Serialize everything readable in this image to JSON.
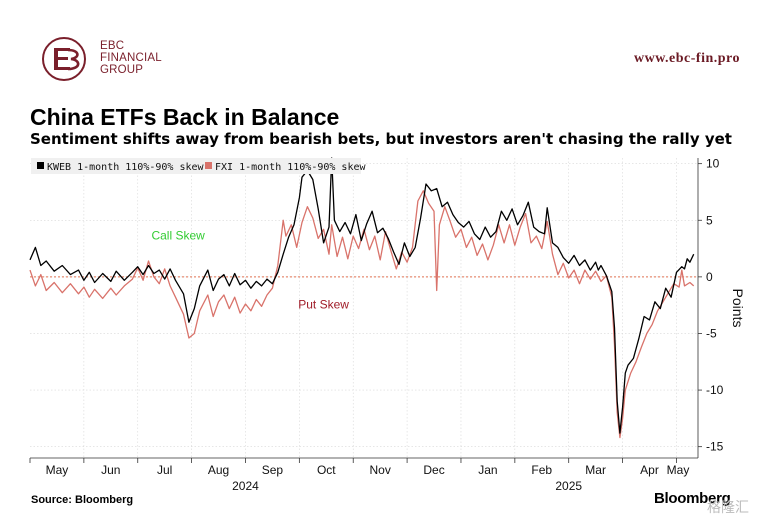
{
  "brand": {
    "logo_lines": [
      "EBC",
      "FINANCIAL",
      "GROUP"
    ],
    "website": "www.ebc-fin.pro",
    "color": "#7a1f2b"
  },
  "footer": {
    "source": "Source: Bloomberg",
    "publisher": "Bloomberg",
    "watermark": "格隆汇"
  },
  "chart_data": {
    "type": "line",
    "title": "China ETFs Back in Balance",
    "subtitle": "Sentiment shifts away from bearish bets, but investors aren't chasing the rally yet",
    "ylabel": "Points",
    "ylim": [
      -16,
      10.5
    ],
    "xlim": [
      0,
      12.4
    ],
    "yticks": [
      10,
      5,
      0,
      -5,
      -10,
      -15
    ],
    "x_ticks": [
      {
        "label": "May",
        "pos": 0.5
      },
      {
        "label": "Jun",
        "pos": 1.5
      },
      {
        "label": "Jul",
        "pos": 2.5
      },
      {
        "label": "Aug",
        "pos": 3.5
      },
      {
        "label": "Sep",
        "pos": 4.5
      },
      {
        "label": "Oct",
        "pos": 5.5
      },
      {
        "label": "Nov",
        "pos": 6.5
      },
      {
        "label": "Dec",
        "pos": 7.5
      },
      {
        "label": "Jan",
        "pos": 8.5
      },
      {
        "label": "Feb",
        "pos": 9.5
      },
      {
        "label": "Mar",
        "pos": 10.5
      },
      {
        "label": "Apr",
        "pos": 11.5
      },
      {
        "label": "May",
        "pos": 12.5
      }
    ],
    "year_labels": [
      {
        "label": "2024",
        "pos": 4.0
      },
      {
        "label": "2025",
        "pos": 10.0
      }
    ],
    "annotations": [
      {
        "text": "Call Skew",
        "x": 2.75,
        "y": 3.3,
        "color": "#33cc33"
      },
      {
        "text": "Put Skew",
        "x": 5.45,
        "y": -2.8,
        "color": "#a01c28"
      }
    ],
    "reference_line": {
      "y": 0,
      "color": "#e07050"
    },
    "series": [
      {
        "name": "KWEB 1-month 110%-90% skew",
        "color": "#000000",
        "points": [
          [
            0,
            1.5
          ],
          [
            0.1,
            2.6
          ],
          [
            0.2,
            1.0
          ],
          [
            0.3,
            1.4
          ],
          [
            0.45,
            0.5
          ],
          [
            0.6,
            1.0
          ],
          [
            0.75,
            0.2
          ],
          [
            0.9,
            0.6
          ],
          [
            1.0,
            -0.3
          ],
          [
            1.1,
            0.4
          ],
          [
            1.2,
            -0.5
          ],
          [
            1.35,
            0.3
          ],
          [
            1.5,
            -0.4
          ],
          [
            1.6,
            0.5
          ],
          [
            1.75,
            -0.3
          ],
          [
            1.9,
            0.4
          ],
          [
            2.0,
            0.9
          ],
          [
            2.1,
            0.2
          ],
          [
            2.2,
            1.0
          ],
          [
            2.3,
            0.3
          ],
          [
            2.4,
            0.6
          ],
          [
            2.5,
            -0.2
          ],
          [
            2.6,
            0.7
          ],
          [
            2.7,
            -0.3
          ],
          [
            2.85,
            -1.5
          ],
          [
            2.95,
            -4.0
          ],
          [
            3.05,
            -2.8
          ],
          [
            3.15,
            -0.8
          ],
          [
            3.3,
            0.6
          ],
          [
            3.4,
            -1.2
          ],
          [
            3.5,
            -0.2
          ],
          [
            3.6,
            0.2
          ],
          [
            3.7,
            -0.8
          ],
          [
            3.8,
            0.3
          ],
          [
            3.9,
            -0.7
          ],
          [
            4.0,
            -0.3
          ],
          [
            4.1,
            -1.0
          ],
          [
            4.2,
            -0.4
          ],
          [
            4.3,
            -0.8
          ],
          [
            4.4,
            -0.2
          ],
          [
            4.5,
            -0.6
          ],
          [
            4.6,
            0.4
          ],
          [
            4.7,
            2.0
          ],
          [
            4.8,
            3.5
          ],
          [
            4.9,
            4.6
          ],
          [
            5.0,
            7.0
          ],
          [
            5.05,
            8.8
          ],
          [
            5.15,
            9.4
          ],
          [
            5.25,
            8.6
          ],
          [
            5.35,
            6.0
          ],
          [
            5.45,
            3.0
          ],
          [
            5.55,
            4.4
          ],
          [
            5.6,
            10.5
          ],
          [
            5.65,
            5.0
          ],
          [
            5.75,
            4.0
          ],
          [
            5.85,
            4.8
          ],
          [
            5.95,
            3.8
          ],
          [
            6.05,
            5.5
          ],
          [
            6.15,
            3.2
          ],
          [
            6.25,
            4.7
          ],
          [
            6.35,
            5.8
          ],
          [
            6.45,
            3.9
          ],
          [
            6.55,
            4.3
          ],
          [
            6.65,
            3.4
          ],
          [
            6.75,
            2.2
          ],
          [
            6.85,
            1.1
          ],
          [
            6.95,
            3.0
          ],
          [
            7.05,
            1.8
          ],
          [
            7.15,
            2.6
          ],
          [
            7.25,
            5.2
          ],
          [
            7.35,
            8.2
          ],
          [
            7.45,
            7.6
          ],
          [
            7.55,
            7.8
          ],
          [
            7.65,
            6.2
          ],
          [
            7.75,
            6.6
          ],
          [
            7.85,
            5.5
          ],
          [
            7.95,
            4.8
          ],
          [
            8.05,
            4.4
          ],
          [
            8.15,
            4.9
          ],
          [
            8.25,
            3.8
          ],
          [
            8.35,
            3.3
          ],
          [
            8.45,
            4.4
          ],
          [
            8.55,
            3.5
          ],
          [
            8.65,
            4.0
          ],
          [
            8.75,
            5.8
          ],
          [
            8.85,
            5.0
          ],
          [
            8.95,
            6.0
          ],
          [
            9.05,
            4.6
          ],
          [
            9.15,
            5.4
          ],
          [
            9.25,
            6.6
          ],
          [
            9.35,
            4.4
          ],
          [
            9.45,
            4.0
          ],
          [
            9.55,
            3.8
          ],
          [
            9.6,
            6.1
          ],
          [
            9.7,
            3.0
          ],
          [
            9.8,
            2.6
          ],
          [
            9.9,
            1.7
          ],
          [
            10.0,
            1.2
          ],
          [
            10.1,
            1.9
          ],
          [
            10.2,
            1.0
          ],
          [
            10.3,
            1.5
          ],
          [
            10.4,
            0.6
          ],
          [
            10.5,
            1.3
          ],
          [
            10.55,
            0.6
          ],
          [
            10.6,
            1.0
          ],
          [
            10.7,
            0.1
          ],
          [
            10.8,
            -1.3
          ],
          [
            10.85,
            -4.5
          ],
          [
            10.9,
            -11.0
          ],
          [
            10.95,
            -13.8
          ],
          [
            11.0,
            -11.5
          ],
          [
            11.05,
            -8.5
          ],
          [
            11.1,
            -7.8
          ],
          [
            11.2,
            -7.2
          ],
          [
            11.3,
            -5.5
          ],
          [
            11.4,
            -3.5
          ],
          [
            11.5,
            -3.8
          ],
          [
            11.6,
            -2.2
          ],
          [
            11.7,
            -2.8
          ],
          [
            11.8,
            -1.0
          ],
          [
            11.9,
            -1.8
          ],
          [
            12.0,
            0.4
          ],
          [
            12.1,
            0.9
          ],
          [
            12.15,
            0.7
          ],
          [
            12.2,
            1.6
          ],
          [
            12.25,
            1.3
          ],
          [
            12.32,
            2.0
          ]
        ]
      },
      {
        "name": "FXI 1-month 110%-90% skew",
        "color": "#d9736b",
        "points": [
          [
            0,
            0.6
          ],
          [
            0.1,
            -0.8
          ],
          [
            0.2,
            0.2
          ],
          [
            0.3,
            -1.2
          ],
          [
            0.45,
            -0.5
          ],
          [
            0.6,
            -1.4
          ],
          [
            0.75,
            -0.6
          ],
          [
            0.9,
            -1.5
          ],
          [
            1.0,
            -0.9
          ],
          [
            1.1,
            -1.8
          ],
          [
            1.2,
            -1.1
          ],
          [
            1.35,
            -1.9
          ],
          [
            1.5,
            -1.0
          ],
          [
            1.6,
            -1.6
          ],
          [
            1.75,
            -0.8
          ],
          [
            1.9,
            -0.2
          ],
          [
            2.0,
            0.8
          ],
          [
            2.1,
            -0.3
          ],
          [
            2.2,
            1.4
          ],
          [
            2.3,
            0.0
          ],
          [
            2.4,
            -0.6
          ],
          [
            2.5,
            0.7
          ],
          [
            2.6,
            -0.8
          ],
          [
            2.7,
            -1.8
          ],
          [
            2.85,
            -3.3
          ],
          [
            2.95,
            -5.4
          ],
          [
            3.05,
            -5.0
          ],
          [
            3.15,
            -3.0
          ],
          [
            3.3,
            -1.6
          ],
          [
            3.4,
            -3.5
          ],
          [
            3.5,
            -2.2
          ],
          [
            3.6,
            -1.6
          ],
          [
            3.7,
            -2.8
          ],
          [
            3.8,
            -1.8
          ],
          [
            3.9,
            -3.2
          ],
          [
            4.0,
            -2.4
          ],
          [
            4.1,
            -3.0
          ],
          [
            4.2,
            -2.0
          ],
          [
            4.3,
            -2.6
          ],
          [
            4.4,
            -1.6
          ],
          [
            4.5,
            -1.0
          ],
          [
            4.6,
            1.0
          ],
          [
            4.7,
            5.0
          ],
          [
            4.75,
            3.6
          ],
          [
            4.85,
            4.6
          ],
          [
            4.95,
            2.6
          ],
          [
            5.05,
            4.8
          ],
          [
            5.15,
            6.2
          ],
          [
            5.25,
            5.2
          ],
          [
            5.35,
            3.4
          ],
          [
            5.45,
            4.2
          ],
          [
            5.55,
            2.0
          ],
          [
            5.6,
            4.6
          ],
          [
            5.7,
            1.8
          ],
          [
            5.8,
            3.5
          ],
          [
            5.9,
            1.6
          ],
          [
            6.0,
            3.6
          ],
          [
            6.1,
            2.5
          ],
          [
            6.2,
            4.2
          ],
          [
            6.3,
            2.4
          ],
          [
            6.4,
            3.6
          ],
          [
            6.5,
            1.5
          ],
          [
            6.6,
            4.0
          ],
          [
            6.7,
            2.3
          ],
          [
            6.8,
            0.7
          ],
          [
            6.9,
            2.2
          ],
          [
            7.0,
            1.3
          ],
          [
            7.1,
            2.6
          ],
          [
            7.2,
            6.7
          ],
          [
            7.3,
            7.6
          ],
          [
            7.4,
            6.5
          ],
          [
            7.5,
            5.8
          ],
          [
            7.55,
            -1.2
          ],
          [
            7.6,
            4.6
          ],
          [
            7.7,
            6.2
          ],
          [
            7.8,
            4.9
          ],
          [
            7.9,
            3.5
          ],
          [
            8.0,
            4.2
          ],
          [
            8.1,
            2.6
          ],
          [
            8.2,
            3.5
          ],
          [
            8.3,
            1.9
          ],
          [
            8.4,
            2.9
          ],
          [
            8.5,
            1.5
          ],
          [
            8.6,
            2.8
          ],
          [
            8.7,
            4.6
          ],
          [
            8.8,
            3.0
          ],
          [
            8.9,
            4.6
          ],
          [
            9.0,
            2.8
          ],
          [
            9.1,
            4.4
          ],
          [
            9.2,
            5.6
          ],
          [
            9.3,
            3.0
          ],
          [
            9.4,
            3.6
          ],
          [
            9.5,
            2.5
          ],
          [
            9.6,
            4.9
          ],
          [
            9.7,
            2.0
          ],
          [
            9.8,
            0.2
          ],
          [
            9.9,
            1.2
          ],
          [
            10.0,
            -0.1
          ],
          [
            10.1,
            0.6
          ],
          [
            10.2,
            -0.6
          ],
          [
            10.3,
            0.6
          ],
          [
            10.4,
            -0.2
          ],
          [
            10.5,
            0.5
          ],
          [
            10.6,
            -0.4
          ],
          [
            10.7,
            0.1
          ],
          [
            10.8,
            -1.8
          ],
          [
            10.85,
            -6.0
          ],
          [
            10.9,
            -12.0
          ],
          [
            10.95,
            -14.2
          ],
          [
            11.0,
            -12.5
          ],
          [
            11.05,
            -10.0
          ],
          [
            11.15,
            -8.5
          ],
          [
            11.25,
            -7.5
          ],
          [
            11.35,
            -6.2
          ],
          [
            11.45,
            -5.0
          ],
          [
            11.55,
            -4.2
          ],
          [
            11.65,
            -3.0
          ],
          [
            11.75,
            -2.2
          ],
          [
            11.85,
            -1.4
          ],
          [
            11.95,
            -0.6
          ],
          [
            12.05,
            -0.9
          ],
          [
            12.1,
            0.6
          ],
          [
            12.15,
            -0.8
          ],
          [
            12.25,
            -0.5
          ],
          [
            12.32,
            -0.8
          ]
        ]
      }
    ]
  }
}
